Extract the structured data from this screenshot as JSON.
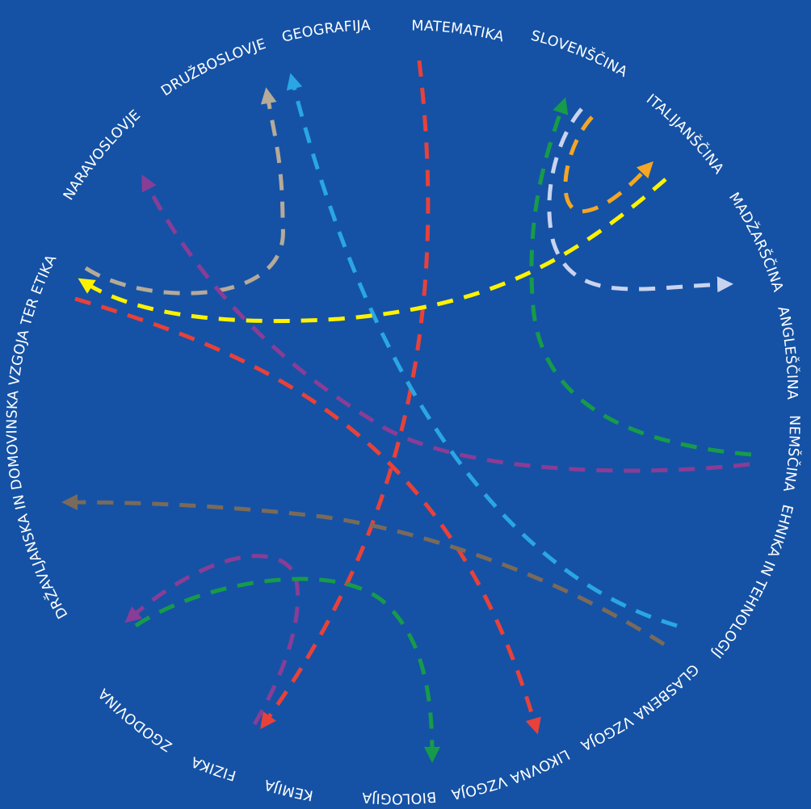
{
  "subjects": [
    {
      "id": "matematika",
      "label": "MATEMATIKA"
    },
    {
      "id": "slovenscina",
      "label": "SLOVENŠČINA"
    },
    {
      "id": "italijanscina",
      "label": "ITALIJANŠČINA"
    },
    {
      "id": "madzarscina",
      "label": "MADŽARŠČINA"
    },
    {
      "id": "anglescina",
      "label": "ANGLEŠČINA"
    },
    {
      "id": "nemscina",
      "label": "NEMŠČINA"
    },
    {
      "id": "tehnika",
      "label": "TEHNIKA IN TEHNOLOGIJA"
    },
    {
      "id": "glasbena",
      "label": "GLASBENA VZGOJA"
    },
    {
      "id": "likovna",
      "label": "LIKOVNA VZGOJA"
    },
    {
      "id": "biologija",
      "label": "BIOLOGIJA"
    },
    {
      "id": "kemija",
      "label": "KEMIJA"
    },
    {
      "id": "fizika",
      "label": "FIZIKA"
    },
    {
      "id": "zgodovina",
      "label": "ZGODOVINA"
    },
    {
      "id": "dkze",
      "label": "DRŽAVLJANSKA IN DOMOVINSKA VZGOJA TER ETIKA"
    },
    {
      "id": "naravoslovje",
      "label": "NARAVOSLOVJE"
    },
    {
      "id": "druzboslovje",
      "label": "DRUŽBOSLOVJE"
    },
    {
      "id": "geografija",
      "label": "GEOGRAFIJA"
    }
  ],
  "connections": [
    {
      "id": "red-a",
      "color": "#e8413a"
    },
    {
      "id": "red-b",
      "color": "#e8413a"
    },
    {
      "id": "red-c",
      "color": "#e8413a"
    },
    {
      "id": "blue",
      "color": "#2aa6e4"
    },
    {
      "id": "tan",
      "color": "#b6aa98"
    },
    {
      "id": "purple-a",
      "color": "#8a3d96"
    },
    {
      "id": "purple-b",
      "color": "#8a3d96"
    },
    {
      "id": "yellow",
      "color": "#fff200"
    },
    {
      "id": "green-a",
      "color": "#179b4a"
    },
    {
      "id": "green-b",
      "color": "#179b4a"
    },
    {
      "id": "lavender",
      "color": "#c9d3f0"
    },
    {
      "id": "orange",
      "color": "#f5a623"
    },
    {
      "id": "brown",
      "color": "#7a6a5a"
    }
  ]
}
